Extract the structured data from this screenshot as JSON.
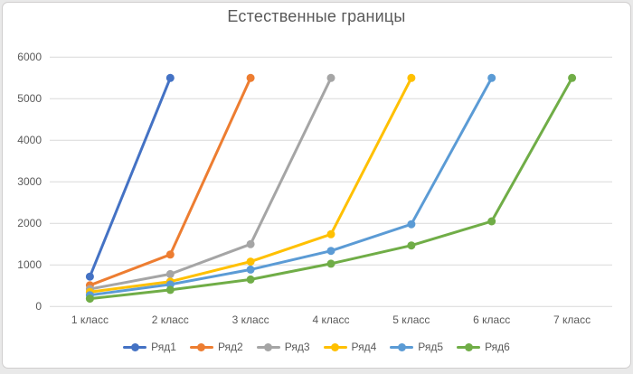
{
  "window": {
    "background": "#ffffff",
    "frame_border_color": "#d0cece"
  },
  "chart_data": {
    "type": "line",
    "title": "Естественные границы",
    "categories": [
      "1 класс",
      "2 класс",
      "3 класс",
      "4 класс",
      "5 класс",
      "6 класс",
      "7 класс"
    ],
    "series": [
      {
        "name": "Ряд1",
        "color": "#4472C4",
        "values": [
          720,
          5500,
          null,
          null,
          null,
          null,
          null
        ]
      },
      {
        "name": "Ряд2",
        "color": "#ED7D31",
        "values": [
          510,
          1250,
          5500,
          null,
          null,
          null,
          null
        ]
      },
      {
        "name": "Ряд3",
        "color": "#A5A5A5",
        "values": [
          420,
          780,
          1500,
          5500,
          null,
          null,
          null
        ]
      },
      {
        "name": "Ряд4",
        "color": "#FFC000",
        "values": [
          350,
          600,
          1080,
          1740,
          5500,
          null,
          null
        ]
      },
      {
        "name": "Ряд5",
        "color": "#5B9BD5",
        "values": [
          275,
          530,
          890,
          1340,
          1980,
          5500,
          null
        ]
      },
      {
        "name": "Ряд6",
        "color": "#70AD47",
        "values": [
          190,
          400,
          650,
          1030,
          1470,
          2050,
          5500
        ]
      }
    ],
    "y_axis": {
      "min": 0,
      "max": 6000,
      "step": 1000,
      "tick_labels": [
        "0",
        "1000",
        "2000",
        "3000",
        "4000",
        "5000",
        "6000"
      ]
    },
    "x_axis": {
      "tick_labels": [
        "1 класс",
        "2 класс",
        "3 класс",
        "4 класс",
        "5 класс",
        "6 класс",
        "7 класс"
      ]
    },
    "grid": "horizontal",
    "legend_position": "bottom",
    "marker": "circle",
    "text_color": "#595959",
    "grid_color": "#D9D9D9"
  }
}
